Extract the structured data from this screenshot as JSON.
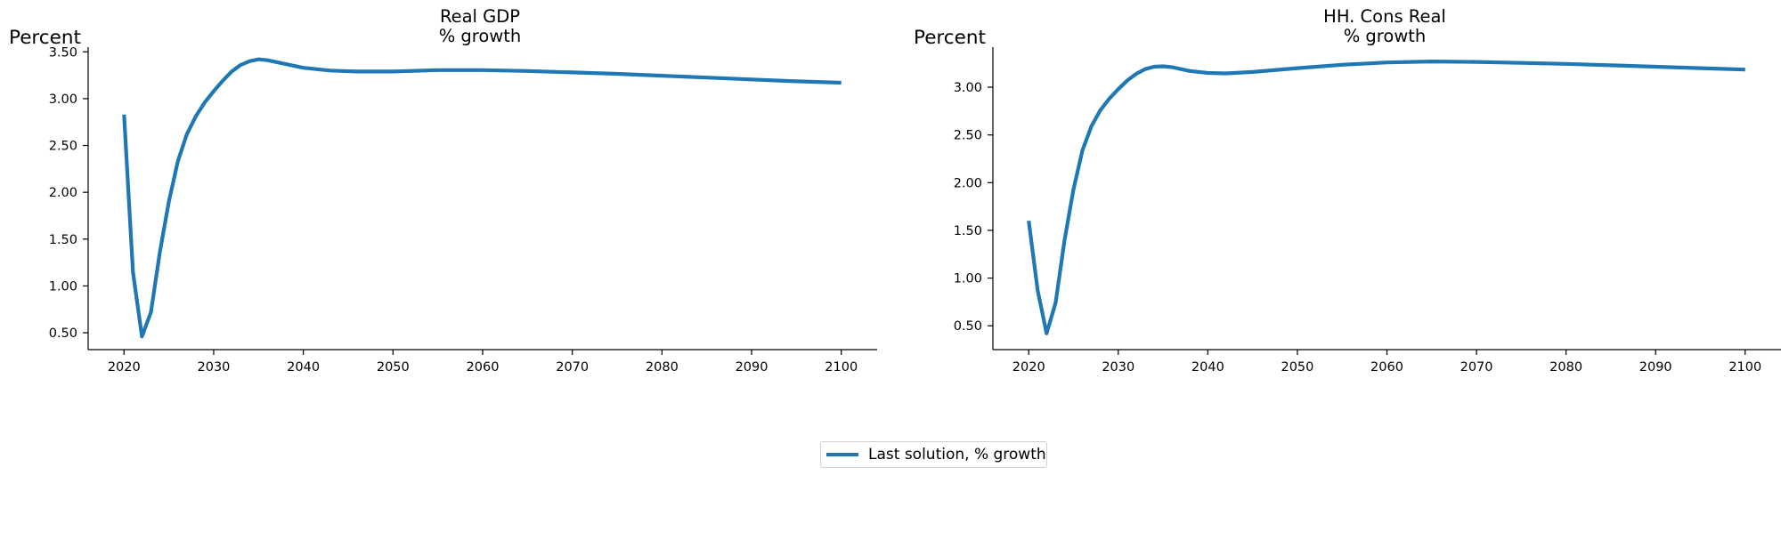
{
  "chart_data": [
    {
      "type": "line",
      "title_lines": [
        "Real GDP",
        "% growth"
      ],
      "ylabel": "Percent",
      "xlim": [
        2016,
        2104
      ],
      "ylim": [
        0.32,
        3.55
      ],
      "x_ticks": [
        "2020",
        "2030",
        "2040",
        "2050",
        "2060",
        "2070",
        "2080",
        "2090",
        "2100"
      ],
      "y_ticks": [
        "0.50",
        "1.00",
        "1.50",
        "2.00",
        "2.50",
        "3.00",
        "3.50"
      ],
      "grid": false,
      "series": [
        {
          "name": "Last solution, % growth",
          "color": "#1f77b4",
          "points": [
            [
              2020,
              2.83
            ],
            [
              2021,
              1.15
            ],
            [
              2022,
              0.46
            ],
            [
              2023,
              0.72
            ],
            [
              2024,
              1.36
            ],
            [
              2025,
              1.9
            ],
            [
              2026,
              2.33
            ],
            [
              2027,
              2.62
            ],
            [
              2028,
              2.81
            ],
            [
              2029,
              2.96
            ],
            [
              2030,
              3.08
            ],
            [
              2031,
              3.19
            ],
            [
              2032,
              3.29
            ],
            [
              2033,
              3.36
            ],
            [
              2034,
              3.4
            ],
            [
              2035,
              3.42
            ],
            [
              2036,
              3.41
            ],
            [
              2037,
              3.39
            ],
            [
              2038,
              3.37
            ],
            [
              2040,
              3.33
            ],
            [
              2043,
              3.3
            ],
            [
              2046,
              3.29
            ],
            [
              2050,
              3.29
            ],
            [
              2055,
              3.305
            ],
            [
              2060,
              3.305
            ],
            [
              2065,
              3.295
            ],
            [
              2070,
              3.28
            ],
            [
              2075,
              3.265
            ],
            [
              2080,
              3.245
            ],
            [
              2085,
              3.225
            ],
            [
              2090,
              3.205
            ],
            [
              2095,
              3.185
            ],
            [
              2100,
              3.17
            ]
          ]
        }
      ]
    },
    {
      "type": "line",
      "title_lines": [
        "HH. Cons Real",
        "% growth"
      ],
      "ylabel": "Percent",
      "xlim": [
        2016,
        2104
      ],
      "ylim": [
        0.25,
        3.42
      ],
      "x_ticks": [
        "2020",
        "2030",
        "2040",
        "2050",
        "2060",
        "2070",
        "2080",
        "2090",
        "2100"
      ],
      "y_ticks": [
        "0.50",
        "1.00",
        "1.50",
        "2.00",
        "2.50",
        "3.00"
      ],
      "grid": false,
      "series": [
        {
          "name": "Last solution, % growth",
          "color": "#1f77b4",
          "points": [
            [
              2020,
              1.6
            ],
            [
              2021,
              0.87
            ],
            [
              2022,
              0.42
            ],
            [
              2023,
              0.74
            ],
            [
              2024,
              1.4
            ],
            [
              2025,
              1.93
            ],
            [
              2026,
              2.34
            ],
            [
              2027,
              2.59
            ],
            [
              2028,
              2.76
            ],
            [
              2029,
              2.88
            ],
            [
              2030,
              2.98
            ],
            [
              2031,
              3.07
            ],
            [
              2032,
              3.14
            ],
            [
              2033,
              3.19
            ],
            [
              2034,
              3.215
            ],
            [
              2035,
              3.22
            ],
            [
              2036,
              3.21
            ],
            [
              2037,
              3.19
            ],
            [
              2038,
              3.17
            ],
            [
              2040,
              3.15
            ],
            [
              2042,
              3.145
            ],
            [
              2045,
              3.16
            ],
            [
              2050,
              3.2
            ],
            [
              2055,
              3.235
            ],
            [
              2060,
              3.26
            ],
            [
              2065,
              3.27
            ],
            [
              2070,
              3.265
            ],
            [
              2075,
              3.255
            ],
            [
              2080,
              3.245
            ],
            [
              2085,
              3.23
            ],
            [
              2090,
              3.215
            ],
            [
              2095,
              3.2
            ],
            [
              2100,
              3.185
            ]
          ]
        }
      ]
    }
  ],
  "legend": {
    "label": "Last solution, % growth",
    "color": "#1f77b4",
    "placement": "bottom-center"
  }
}
